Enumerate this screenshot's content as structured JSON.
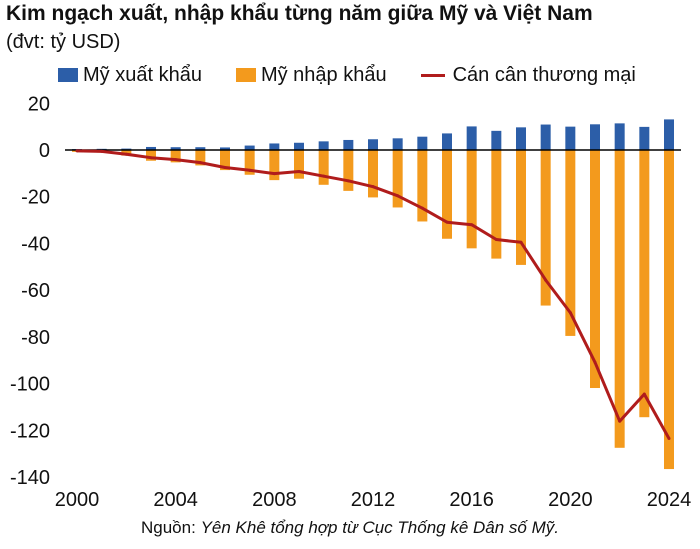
{
  "header": {
    "title": "Kim ngạch xuất, nhập khẩu từng năm giữa Mỹ và Việt Nam",
    "subtitle": "(đvt: tỷ USD)"
  },
  "source": {
    "label": "Nguồn:",
    "text": "Yên Khê tổng hợp từ Cục Thống kê Dân số Mỹ."
  },
  "chart_data": {
    "type": "bar",
    "title": "Kim ngạch xuất, nhập khẩu từng năm giữa Mỹ và Việt Nam",
    "ylabel": "(đvt: tỷ USD)",
    "xlabel": "",
    "ylim": [
      -140,
      20
    ],
    "yticks": [
      20,
      0,
      -20,
      -40,
      -60,
      -80,
      -100,
      -120,
      -140
    ],
    "xticks": [
      2000,
      2004,
      2008,
      2012,
      2016,
      2020,
      2024
    ],
    "grid": false,
    "legend_position": "top",
    "categories": [
      2000,
      2001,
      2002,
      2003,
      2004,
      2005,
      2006,
      2007,
      2008,
      2009,
      2010,
      2011,
      2012,
      2013,
      2014,
      2015,
      2016,
      2017,
      2018,
      2019,
      2020,
      2021,
      2022,
      2023,
      2024
    ],
    "series": [
      {
        "name": "Mỹ xuất khẩu",
        "type": "bar",
        "color": "#2c5ea8",
        "values": [
          0.4,
          0.5,
          0.6,
          1.3,
          1.2,
          1.2,
          1.1,
          1.9,
          2.8,
          3.1,
          3.7,
          4.3,
          4.6,
          5.0,
          5.7,
          7.1,
          10.1,
          8.2,
          9.7,
          10.9,
          10.0,
          11.0,
          11.4,
          9.9,
          13.1
        ]
      },
      {
        "name": "Mỹ nhập khẩu",
        "type": "bar",
        "color": "#f39a1d",
        "values": [
          -0.8,
          -1.1,
          -2.4,
          -4.6,
          -5.3,
          -6.6,
          -8.6,
          -10.6,
          -12.9,
          -12.3,
          -14.9,
          -17.5,
          -20.3,
          -24.6,
          -30.6,
          -38.0,
          -42.1,
          -46.5,
          -49.2,
          -66.6,
          -79.6,
          -101.9,
          -127.5,
          -114.4,
          -136.6
        ]
      },
      {
        "name": "Cán cân thương mại",
        "type": "line",
        "color": "#b01c1c",
        "values": [
          -0.4,
          -0.6,
          -1.8,
          -3.3,
          -4.1,
          -5.4,
          -7.5,
          -8.7,
          -10.1,
          -9.2,
          -11.2,
          -13.2,
          -15.7,
          -19.6,
          -24.9,
          -30.9,
          -32.0,
          -38.3,
          -39.5,
          -55.7,
          -69.6,
          -90.9,
          -116.1,
          -104.5,
          -123.5
        ]
      }
    ]
  }
}
